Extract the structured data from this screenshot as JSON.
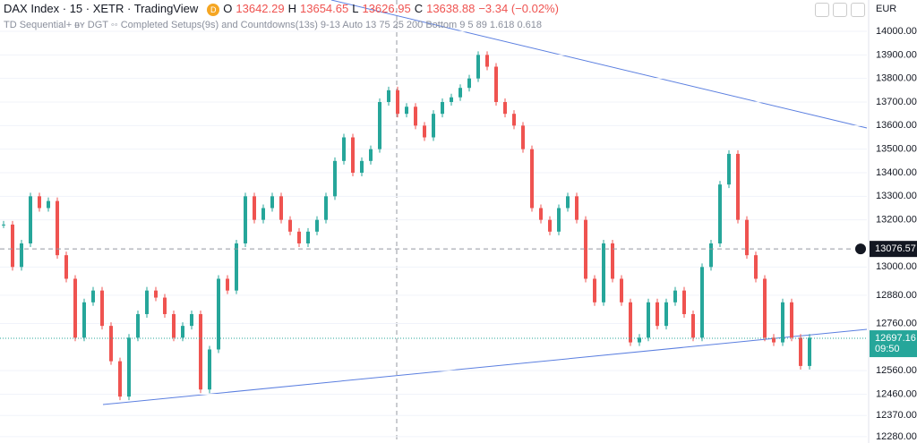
{
  "header": {
    "symbol": "DAX Index · 15 · XETR · TradingView",
    "badge": "D",
    "open_label": "O",
    "open": "13642.29",
    "high_label": "H",
    "high": "13654.65",
    "low_label": "L",
    "low": "13626.95",
    "close_label": "C",
    "close": "13638.88",
    "change": "−3.34 (−0.02%)",
    "indicator": "TD Sequential+ ᴃʏ DGT ◦◦ Completed Setups(9s) and Countdowns(13s) 9-13 Auto 13 75 25 200 Bottom 9 5 89 1.618 0.618",
    "currency": "EUR"
  },
  "chart_data": {
    "type": "candlestick",
    "up_color": "#26a69a",
    "down_color": "#ef5350",
    "values": [
      13180,
      13000,
      13100,
      13300,
      13250,
      13280,
      13050,
      12950,
      12700,
      12850,
      12900,
      12750,
      12600,
      12450,
      12700,
      12800,
      12900,
      12870,
      12800,
      12700,
      12750,
      12800,
      12480,
      12650,
      12950,
      12900,
      13100,
      13300,
      13200,
      13250,
      13300,
      13200,
      13150,
      13100,
      13150,
      13200,
      13300,
      13450,
      13550,
      13400,
      13450,
      13500,
      13700,
      13750,
      13650,
      13680,
      13600,
      13550,
      13650,
      13700,
      13720,
      13760,
      13800,
      13900,
      13850,
      13700,
      13650,
      13600,
      13500,
      13250,
      13200,
      13150,
      13250,
      13300,
      13200,
      12950,
      12850,
      13100,
      12950,
      12850,
      12680,
      12700,
      12850,
      12750,
      12850,
      12900,
      12800,
      12700,
      13000,
      13100,
      13350,
      13480,
      13200,
      13050,
      12950,
      12700,
      12680,
      12850,
      12700,
      12580,
      12700
    ],
    "ylim": [
      12253,
      14133
    ],
    "yticks": [
      {
        "value": 14000,
        "label": "14000.00"
      },
      {
        "value": 13900,
        "label": "13900.00"
      },
      {
        "value": 13800,
        "label": "13800.00"
      },
      {
        "value": 13700,
        "label": "13700.00"
      },
      {
        "value": 13600,
        "label": "13600.00"
      },
      {
        "value": 13500,
        "label": "13500.00"
      },
      {
        "value": 13400,
        "label": "13400.00"
      },
      {
        "value": 13300,
        "label": "13300.00"
      },
      {
        "value": 13200,
        "label": "13200.00"
      },
      {
        "value": 13000,
        "label": "13000.00"
      },
      {
        "value": 12880,
        "label": "12880.00"
      },
      {
        "value": 12760,
        "label": "12760.00"
      },
      {
        "value": 12560,
        "label": "12560.00"
      },
      {
        "value": 12460,
        "label": "12460.00"
      },
      {
        "value": 12370,
        "label": "12370.00"
      },
      {
        "value": 12280,
        "label": "12280.00"
      }
    ],
    "crosshair": {
      "value": 13076.57,
      "label": "13076.57"
    },
    "last_price": {
      "value": 12697.16,
      "label": "12697.16",
      "countdown": "09:50"
    }
  }
}
